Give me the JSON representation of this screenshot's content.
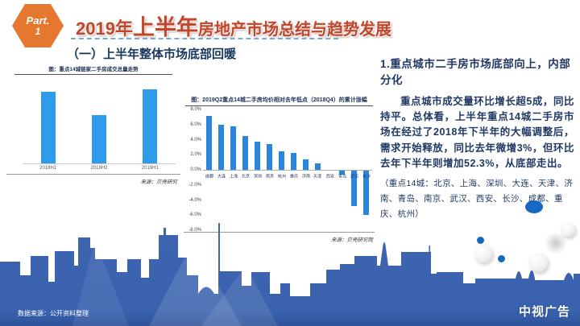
{
  "badge": {
    "part_label": "Part.",
    "part_number": "1"
  },
  "header": {
    "title_prefix": "2019年",
    "title_emph": "上半年",
    "title_rest": "房地产市场总结与趋势发展"
  },
  "section": {
    "heading": "（一）上半年整体市场底部回暖"
  },
  "chart_data": [
    {
      "type": "bar",
      "title": "图：重点14城链家二手房成交总量走势",
      "categories": [
        "2018H1",
        "2018H2",
        "2019H1"
      ],
      "values": [
        84,
        57,
        87
      ],
      "ymax": 100,
      "ylabel": "",
      "axis_note": "y-axis unlabeled, relative volume index",
      "source": "来源：贝壳研究",
      "bar_color": "#2f9ceb",
      "grid": false
    },
    {
      "type": "bar",
      "title": "图：2019Q2重点14城二手房均价相对去年低点（2018Q4）的累计涨幅",
      "categories": [
        "成都",
        "大连",
        "上海",
        "北京",
        "深圳",
        "南京",
        "杭州",
        "重庆",
        "济南",
        "天津",
        "西安",
        "青岛",
        "武汉",
        "长沙"
      ],
      "values": [
        7.2,
        6.0,
        5.8,
        4.5,
        3.7,
        3.4,
        2.5,
        2.2,
        1.4,
        0.9,
        0.0,
        -0.5,
        -4.7,
        -5.9
      ],
      "ylim": [
        -8,
        8
      ],
      "ytick_values": [
        8,
        6,
        4,
        2,
        0,
        -2,
        -4,
        -6,
        -8
      ],
      "ytick_labels": [
        "8.0%",
        "6.0%",
        "4.0%",
        "2.0%",
        "0.0%",
        "-2.0%",
        "-4.0%",
        "-6.0%",
        "-8.0%"
      ],
      "source": "来源：贝壳研究院",
      "bar_color": "#2a85dc",
      "grid": false
    }
  ],
  "right_panel": {
    "heading": "1.重点城市二手房市场底部向上，内部分化",
    "body": "重点城市成交量环比增长超5成，同比持平。总体看，上半年重点14城二手房市场在经过了2018年下半年的大幅调整后，需求开始释放，同比去年微增3%，但环比去年下半年则增加52.3%，从底部走出。",
    "note": "（重点14城：北京、上海、深圳、大连、天津、济南、青岛、南京、武汉、西安、长沙、成都、重庆、杭州）"
  },
  "footer": {
    "data_source": "数据来源：公开资料整理",
    "watermark": "中视广告"
  },
  "colors": {
    "badge_orange": "#e5772f",
    "title_red": "#c0472b",
    "dash_blue": "#5b9bd5",
    "text_navy": "#1f3864",
    "bar_blue_left": "#2f9ceb",
    "bar_blue_mid": "#2a85dc",
    "skyline_blue": "#3a62ae"
  }
}
